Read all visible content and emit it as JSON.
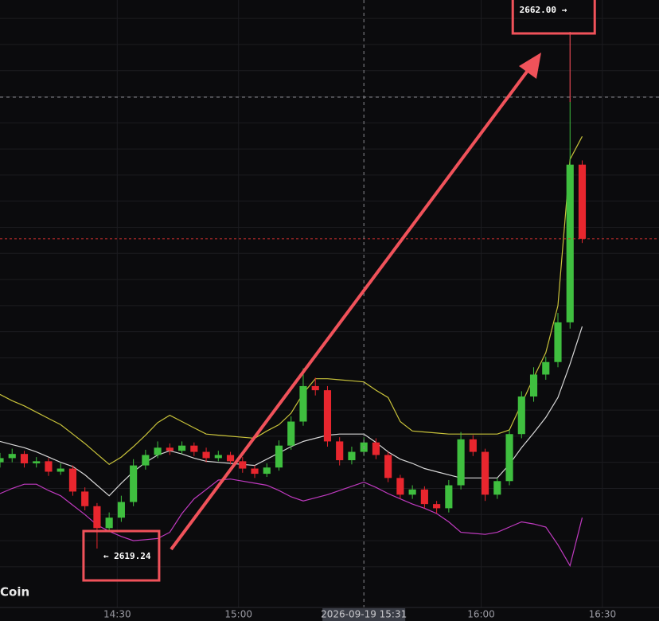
{
  "chart_data": {
    "type": "candlestick",
    "watermark": "Coin",
    "x": [
      "14:01",
      "14:04",
      "14:07",
      "14:10",
      "14:13",
      "14:16",
      "14:19",
      "14:22",
      "14:25",
      "14:28",
      "14:31",
      "14:34",
      "14:37",
      "14:40",
      "14:43",
      "14:46",
      "14:49",
      "14:52",
      "14:55",
      "14:58",
      "15:01",
      "15:04",
      "15:07",
      "15:10",
      "15:13",
      "15:16",
      "15:19",
      "15:22",
      "15:25",
      "15:28",
      "15:31",
      "15:34",
      "15:37",
      "15:40",
      "15:43",
      "15:46",
      "15:49",
      "15:52",
      "15:55",
      "15:58",
      "16:01",
      "16:04",
      "16:07",
      "16:10",
      "16:13",
      "16:16",
      "16:19",
      "16:22",
      "16:25"
    ],
    "open": [
      2627.5,
      2627.9,
      2628.3,
      2627.4,
      2627.6,
      2626.6,
      2626.9,
      2624.7,
      2623.3,
      2621.2,
      2622.2,
      2623.7,
      2627.2,
      2628.2,
      2628.9,
      2628.6,
      2629.1,
      2628.5,
      2627.9,
      2628.2,
      2627.6,
      2626.9,
      2626.4,
      2627.0,
      2629.1,
      2631.4,
      2634.8,
      2634.4,
      2629.5,
      2627.7,
      2628.5,
      2629.4,
      2628.2,
      2626.0,
      2624.4,
      2624.9,
      2623.5,
      2623.1,
      2625.3,
      2629.7,
      2628.5,
      2624.4,
      2625.7,
      2630.2,
      2633.8,
      2635.9,
      2637.1,
      2640.9,
      2656.0
    ],
    "high": [
      2628.4,
      2628.8,
      2628.6,
      2628.0,
      2627.9,
      2627.4,
      2627.2,
      2625.1,
      2623.6,
      2622.7,
      2624.3,
      2627.8,
      2628.7,
      2629.5,
      2629.3,
      2629.5,
      2629.4,
      2628.9,
      2628.6,
      2628.5,
      2628.0,
      2627.2,
      2627.4,
      2629.6,
      2631.9,
      2636.5,
      2635.6,
      2634.8,
      2629.9,
      2629.0,
      2629.9,
      2629.8,
      2628.5,
      2626.3,
      2625.3,
      2625.2,
      2623.8,
      2625.8,
      2630.4,
      2630.1,
      2628.8,
      2626.0,
      2630.6,
      2634.3,
      2636.6,
      2637.6,
      2641.8,
      2662.0,
      2656.4
    ],
    "low": [
      2627.0,
      2627.5,
      2627.0,
      2627.0,
      2626.2,
      2626.3,
      2624.3,
      2622.9,
      2619.24,
      2620.8,
      2621.8,
      2623.3,
      2626.8,
      2627.9,
      2628.2,
      2628.3,
      2628.1,
      2627.5,
      2627.6,
      2627.3,
      2626.5,
      2626.0,
      2626.1,
      2626.7,
      2628.7,
      2631.0,
      2633.9,
      2629.0,
      2627.2,
      2627.3,
      2628.1,
      2627.8,
      2625.6,
      2624.0,
      2624.0,
      2623.1,
      2622.6,
      2622.7,
      2624.9,
      2628.1,
      2623.8,
      2624.0,
      2625.3,
      2629.8,
      2633.3,
      2635.4,
      2636.6,
      2640.3,
      2648.5
    ],
    "close": [
      2627.9,
      2628.3,
      2627.4,
      2627.6,
      2626.6,
      2626.9,
      2624.7,
      2623.3,
      2621.2,
      2622.2,
      2623.7,
      2627.2,
      2628.2,
      2628.9,
      2628.6,
      2629.1,
      2628.5,
      2627.9,
      2628.2,
      2627.6,
      2626.9,
      2626.4,
      2627.0,
      2629.1,
      2631.4,
      2634.8,
      2634.4,
      2629.5,
      2627.7,
      2628.5,
      2629.4,
      2628.2,
      2626.0,
      2624.4,
      2624.9,
      2623.5,
      2623.1,
      2625.3,
      2629.7,
      2628.5,
      2624.4,
      2625.7,
      2630.2,
      2633.8,
      2635.9,
      2637.1,
      2640.9,
      2656.0,
      2648.9
    ],
    "up_color": "#3fbf3f",
    "down_color": "#e8262e",
    "bands": [
      {
        "color": "#c8c23a",
        "values": [
          2634.0,
          2633.4,
          2632.9,
          2632.3,
          2631.7,
          2631.1,
          2630.2,
          2629.3,
          2628.3,
          2627.3,
          2628.0,
          2629.0,
          2630.1,
          2631.3,
          2632.0,
          2631.4,
          2630.8,
          2630.2,
          2630.1,
          2630.0,
          2629.9,
          2629.8,
          2630.5,
          2631.1,
          2632.2,
          2634.1,
          2635.5,
          2635.5,
          2635.4,
          2635.3,
          2635.2,
          2634.4,
          2633.7,
          2631.4,
          2630.5,
          2630.4,
          2630.3,
          2630.2,
          2630.2,
          2630.2,
          2630.2,
          2630.2,
          2630.6,
          2633.1,
          2635.6,
          2638.0,
          2642.5,
          2656.5,
          2658.7
        ]
      },
      {
        "color": "#d8d8d8",
        "values": [
          2629.5,
          2629.2,
          2628.9,
          2628.5,
          2628.0,
          2627.5,
          2627.1,
          2626.3,
          2625.3,
          2624.3,
          2625.5,
          2626.6,
          2627.5,
          2628.2,
          2628.6,
          2628.3,
          2627.9,
          2627.6,
          2627.5,
          2627.4,
          2627.3,
          2627.2,
          2627.8,
          2628.4,
          2629.0,
          2629.5,
          2629.8,
          2630.1,
          2630.2,
          2630.2,
          2630.2,
          2629.4,
          2628.5,
          2627.8,
          2627.4,
          2626.9,
          2626.6,
          2626.3,
          2626.0,
          2626.0,
          2626.0,
          2626.0,
          2627.3,
          2628.9,
          2630.3,
          2631.8,
          2633.7,
          2636.9,
          2640.5
        ]
      },
      {
        "color": "#c03ac0",
        "values": [
          2624.5,
          2625.0,
          2625.4,
          2625.4,
          2624.8,
          2624.3,
          2623.4,
          2622.5,
          2621.5,
          2620.9,
          2620.4,
          2620.0,
          2620.1,
          2620.2,
          2620.8,
          2622.6,
          2624.0,
          2624.9,
          2625.8,
          2625.9,
          2625.7,
          2625.5,
          2625.3,
          2624.8,
          2624.2,
          2623.8,
          2624.1,
          2624.4,
          2624.8,
          2625.2,
          2625.6,
          2625.1,
          2624.5,
          2624.0,
          2623.5,
          2623.1,
          2622.6,
          2621.8,
          2620.8,
          2620.7,
          2620.6,
          2620.8,
          2621.3,
          2621.8,
          2621.6,
          2621.3,
          2619.6,
          2617.6,
          2622.2
        ]
      }
    ],
    "xlim": [
      "14:01",
      "16:44"
    ],
    "xticks": [
      "14:30",
      "15:00",
      "16:00",
      "16:30"
    ],
    "ylim": [
      2613.45,
      2671.76
    ],
    "grid_y": [
      2617.5,
      2620,
      2622.5,
      2625,
      2627.5,
      2630,
      2632.5,
      2635,
      2637.5,
      2640,
      2642.5,
      2645,
      2647.5,
      2650,
      2652.5,
      2655,
      2657.5,
      2660,
      2662.5,
      2665,
      2667.5,
      2670
    ],
    "last_price": 2648.9,
    "crosshair": {
      "time": "2026-09-19 15:31",
      "price": 2662.46
    },
    "max_marker": {
      "value": 2662.0,
      "label": "2662.00 →"
    },
    "min_marker": {
      "value": 2619.24,
      "label": "← 2619.24"
    }
  }
}
